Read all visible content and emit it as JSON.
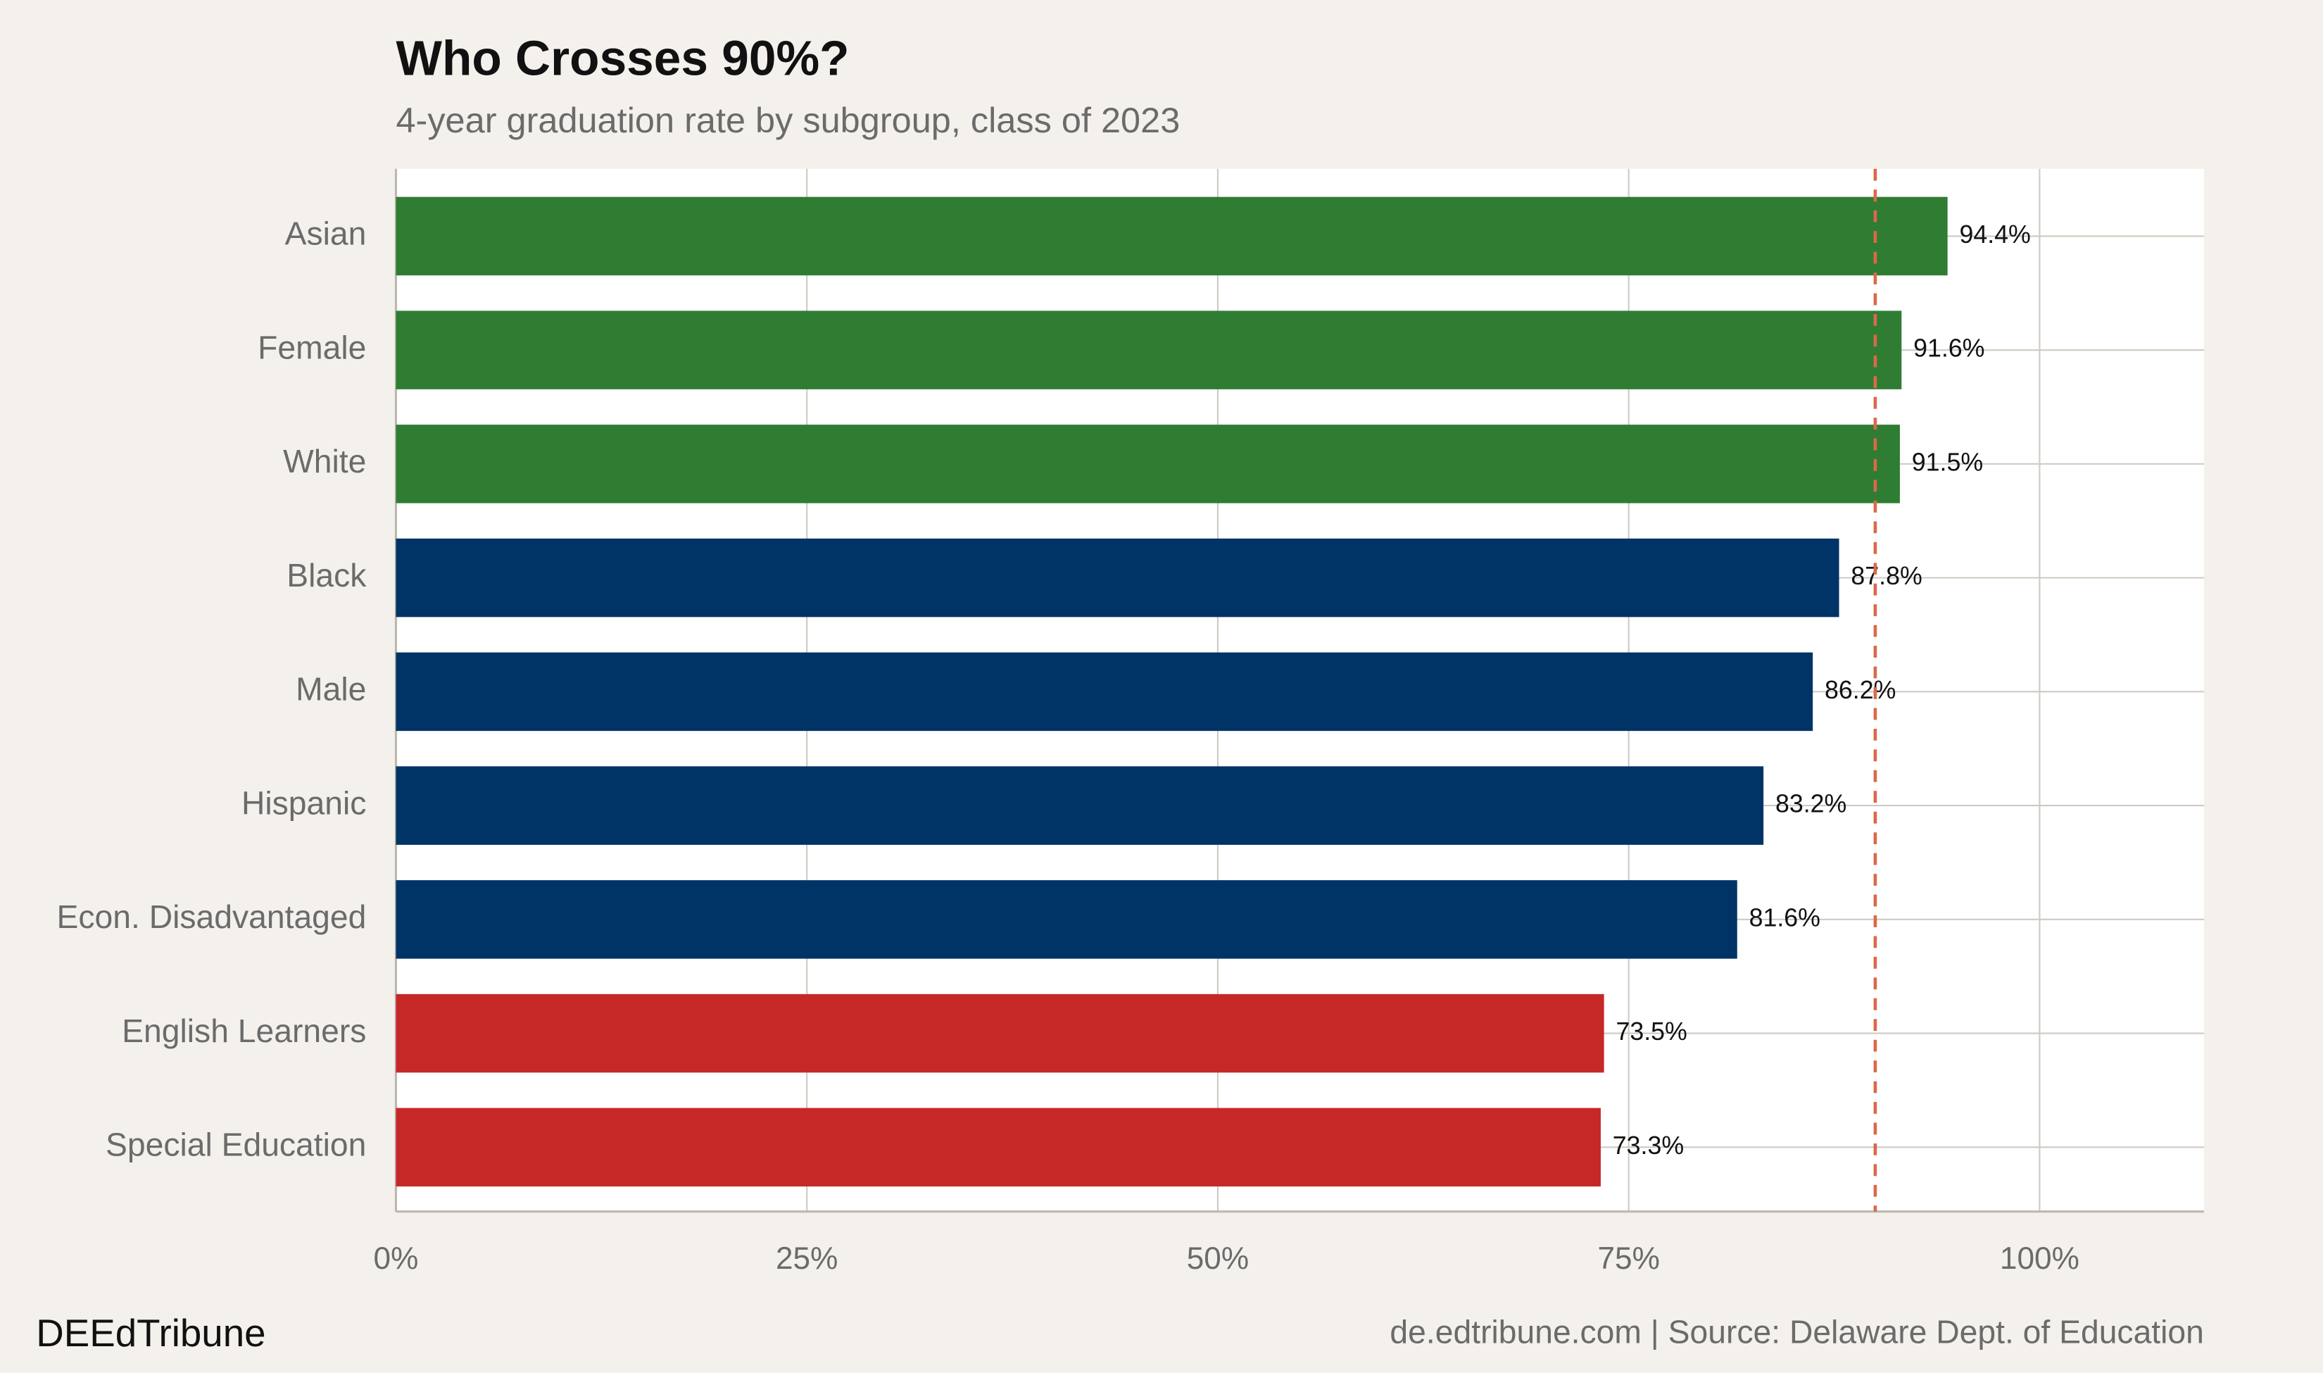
{
  "chart_data": {
    "type": "barh",
    "title": "Who Crosses 90%?",
    "subtitle": "4-year graduation rate by subgroup, class of 2023",
    "categories": [
      "Asian",
      "Female",
      "White",
      "Black",
      "Male",
      "Hispanic",
      "Econ. Disadvantaged",
      "English Learners",
      "Special Education"
    ],
    "values": [
      94.4,
      91.6,
      91.5,
      87.8,
      86.2,
      83.2,
      81.6,
      73.5,
      73.3
    ],
    "value_labels": [
      "94.4%",
      "91.6%",
      "91.5%",
      "87.8%",
      "86.2%",
      "83.2%",
      "81.6%",
      "73.5%",
      "73.3%"
    ],
    "colors": [
      "#2e7d32",
      "#2e7d32",
      "#2e7d32",
      "#003366",
      "#003366",
      "#003366",
      "#003366",
      "#c62828",
      "#c62828"
    ],
    "xlim": [
      0,
      110
    ],
    "xticks": [
      {
        "value": 0,
        "label": "0%"
      },
      {
        "value": 25,
        "label": "25%"
      },
      {
        "value": 50,
        "label": "50%"
      },
      {
        "value": 75,
        "label": "75%"
      },
      {
        "value": 100,
        "label": "100%"
      }
    ],
    "reference_line": {
      "value": 90,
      "color": "#d9694a"
    },
    "grid": true,
    "brand": "DEEdTribune",
    "source": "de.edtribune.com | Source: Delaware Dept. of Education"
  }
}
